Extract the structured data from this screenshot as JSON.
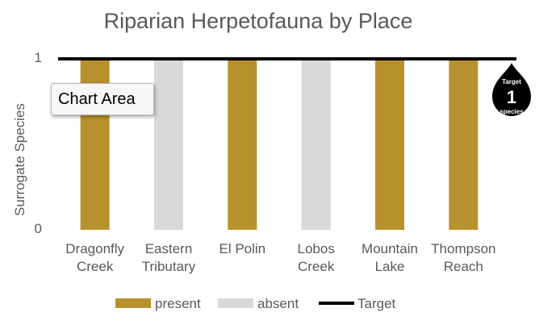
{
  "chart_data": {
    "type": "bar",
    "title": "Riparian Herpetofauna by Place",
    "ylabel": "Surrogate Species",
    "xlabel": "",
    "ylim": [
      0,
      1
    ],
    "yticks": [
      "0",
      "1"
    ],
    "categories": [
      [
        "Dragonfly",
        "Creek"
      ],
      [
        "Eastern",
        "Tributary"
      ],
      [
        "El Polin"
      ],
      [
        "Lobos",
        "Creek"
      ],
      [
        "Mountain",
        "Lake"
      ],
      [
        "Thompson",
        "Reach"
      ]
    ],
    "series": [
      {
        "name": "present",
        "color": "#B8912F",
        "values": [
          1,
          0,
          1,
          0,
          1,
          1
        ]
      },
      {
        "name": "absent",
        "color": "#D9D9D9",
        "values": [
          0,
          1,
          0,
          1,
          0,
          0
        ]
      }
    ],
    "target": {
      "name": "Target",
      "value": 1,
      "color": "#000000"
    },
    "target_badge": {
      "top": "Target",
      "value": "1",
      "bottom": "species"
    },
    "legend_position": "bottom",
    "grid": false
  },
  "tooltip": {
    "text": "Chart Area"
  }
}
